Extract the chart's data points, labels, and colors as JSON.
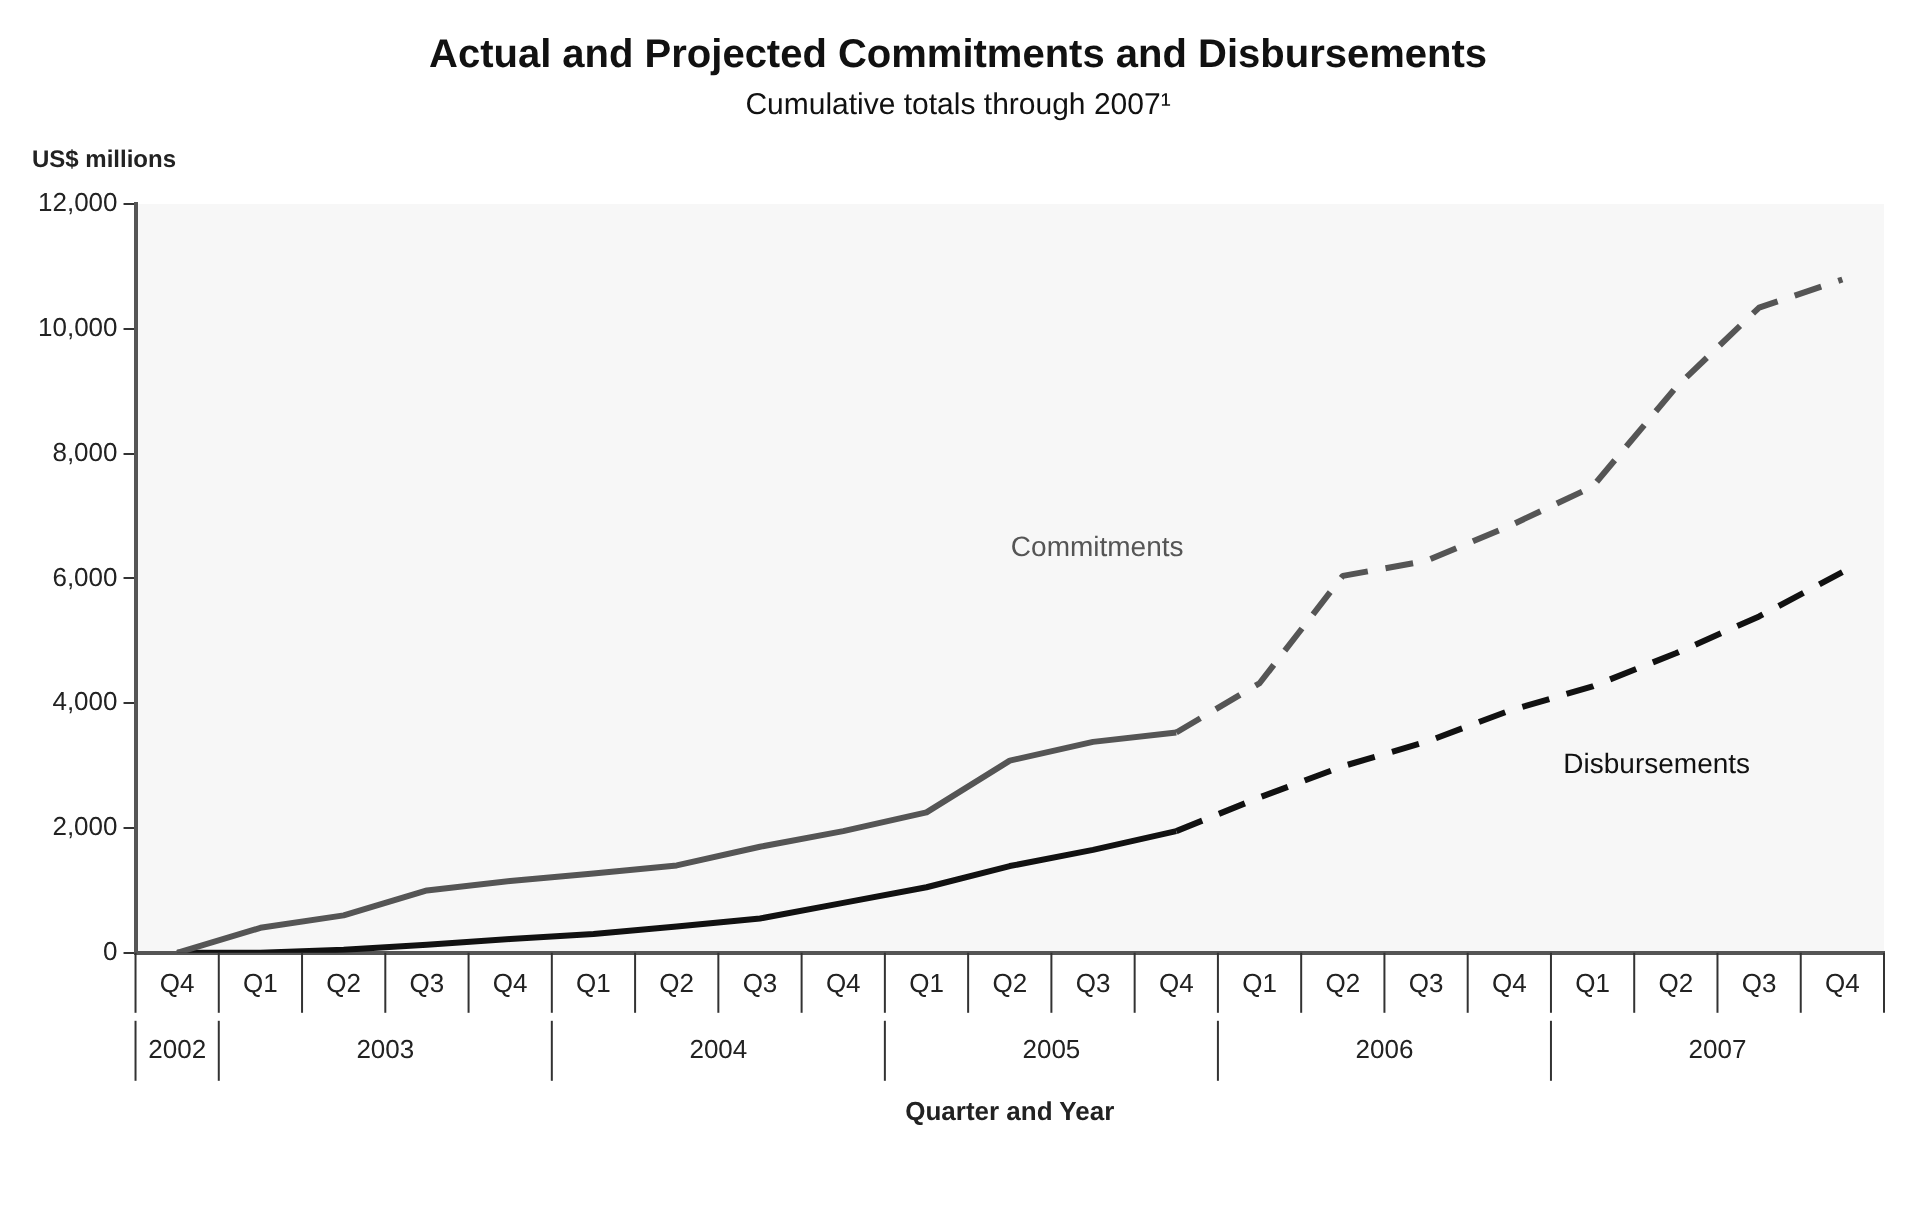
{
  "chart_data": {
    "type": "line",
    "title": "Actual and Projected Commitments and Disbursements",
    "subtitle": "Cumulative totals through 2007¹",
    "ylabel": "US$ millions",
    "xlabel": "Quarter and Year",
    "categories": [
      "Q4",
      "Q1",
      "Q2",
      "Q3",
      "Q4",
      "Q1",
      "Q2",
      "Q3",
      "Q4",
      "Q1",
      "Q2",
      "Q3",
      "Q4",
      "Q1",
      "Q2",
      "Q3",
      "Q4",
      "Q1",
      "Q2",
      "Q3",
      "Q4"
    ],
    "annotations": [
      "2002",
      "2003",
      "2004",
      "2005",
      "2006",
      "2007"
    ],
    "series": [
      {
        "name": "Commitments",
        "color": "#555555",
        "line_style": "solid",
        "values": [
          0,
          400,
          600,
          1000,
          1150,
          1270,
          1400,
          1700,
          1950,
          2250,
          3080,
          3380,
          3530,
          null,
          null,
          null,
          null,
          null,
          null,
          null,
          null
        ]
      },
      {
        "name": "Disbursements",
        "color": "#111111",
        "line_style": "solid",
        "values": [
          0,
          0,
          50,
          130,
          220,
          300,
          420,
          550,
          800,
          1050,
          1390,
          1650,
          1950,
          null,
          null,
          null,
          null,
          null,
          null,
          null,
          null
        ]
      },
      {
        "color": "#555555",
        "line_style": "dashed",
        "values": [
          null,
          null,
          null,
          null,
          null,
          null,
          null,
          null,
          null,
          null,
          null,
          null,
          3530,
          4320,
          6040,
          6280,
          6840,
          7470,
          9060,
          10340,
          10790
        ]
      },
      {
        "color": "#111111",
        "line_style": "dashed",
        "values": [
          null,
          null,
          null,
          null,
          null,
          null,
          null,
          null,
          null,
          null,
          null,
          null,
          1950,
          2490,
          2990,
          3380,
          3880,
          4270,
          4800,
          5390,
          6100
        ]
      }
    ],
    "ylim": [
      0,
      12000
    ],
    "yticks": [
      0,
      {
        "value": 2000,
        "label": "2,000"
      },
      {
        "value": 4000,
        "label": "4,000"
      },
      {
        "value": 6000,
        "label": "6,000"
      },
      {
        "value": 8000,
        "label": "8,000"
      },
      {
        "value": 10000,
        "label": "10,000"
      },
      {
        "value": 12000,
        "label": "12,000"
      }
    ],
    "grid": false,
    "marker": "none"
  }
}
